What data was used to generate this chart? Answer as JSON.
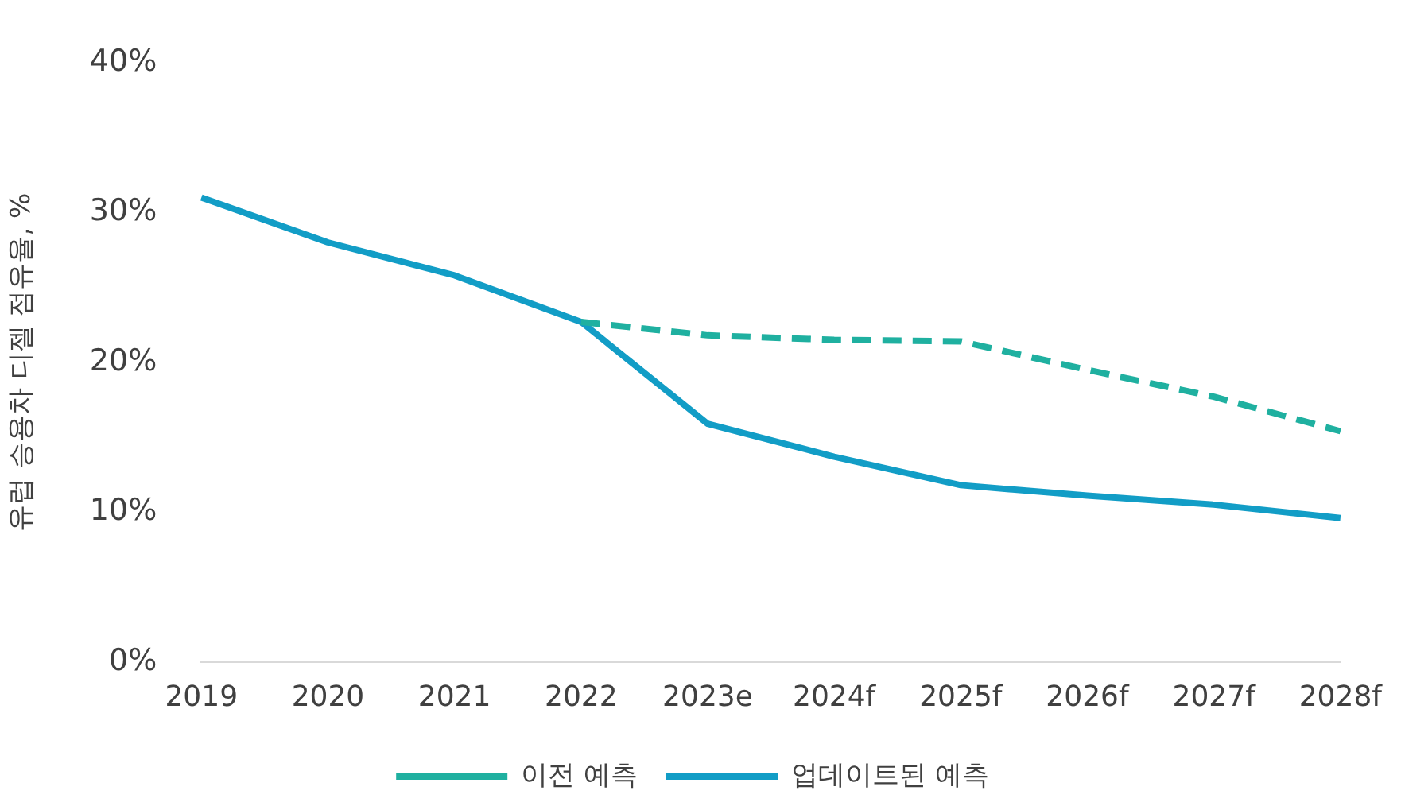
{
  "chart_data": {
    "type": "line",
    "ylabel": "유럽 승용차 디젤 점유율, %",
    "categories": [
      "2019",
      "2020",
      "2021",
      "2022",
      "2023e",
      "2024f",
      "2025f",
      "2026f",
      "2027f",
      "2028f"
    ],
    "series": [
      {
        "name": "이전 예측",
        "color": "#1fb0a0",
        "line_style": "dashed",
        "values": [
          null,
          null,
          null,
          22.7,
          21.8,
          21.5,
          21.4,
          19.5,
          17.7,
          15.4
        ]
      },
      {
        "name": "업데이트된 예측",
        "color": "#129dc6",
        "line_style": "solid",
        "values": [
          31.0,
          28.0,
          25.8,
          22.7,
          15.9,
          13.7,
          11.8,
          11.1,
          10.5,
          9.6
        ]
      }
    ],
    "ylim": [
      0,
      40
    ],
    "yticks": [
      {
        "value": 0,
        "label": "0%"
      },
      {
        "value": 10,
        "label": "10%"
      },
      {
        "value": 20,
        "label": "20%"
      },
      {
        "value": 30,
        "label": "30%"
      },
      {
        "value": 40,
        "label": "40%"
      }
    ],
    "grid": false,
    "legend": "bottom",
    "marker": "none"
  }
}
